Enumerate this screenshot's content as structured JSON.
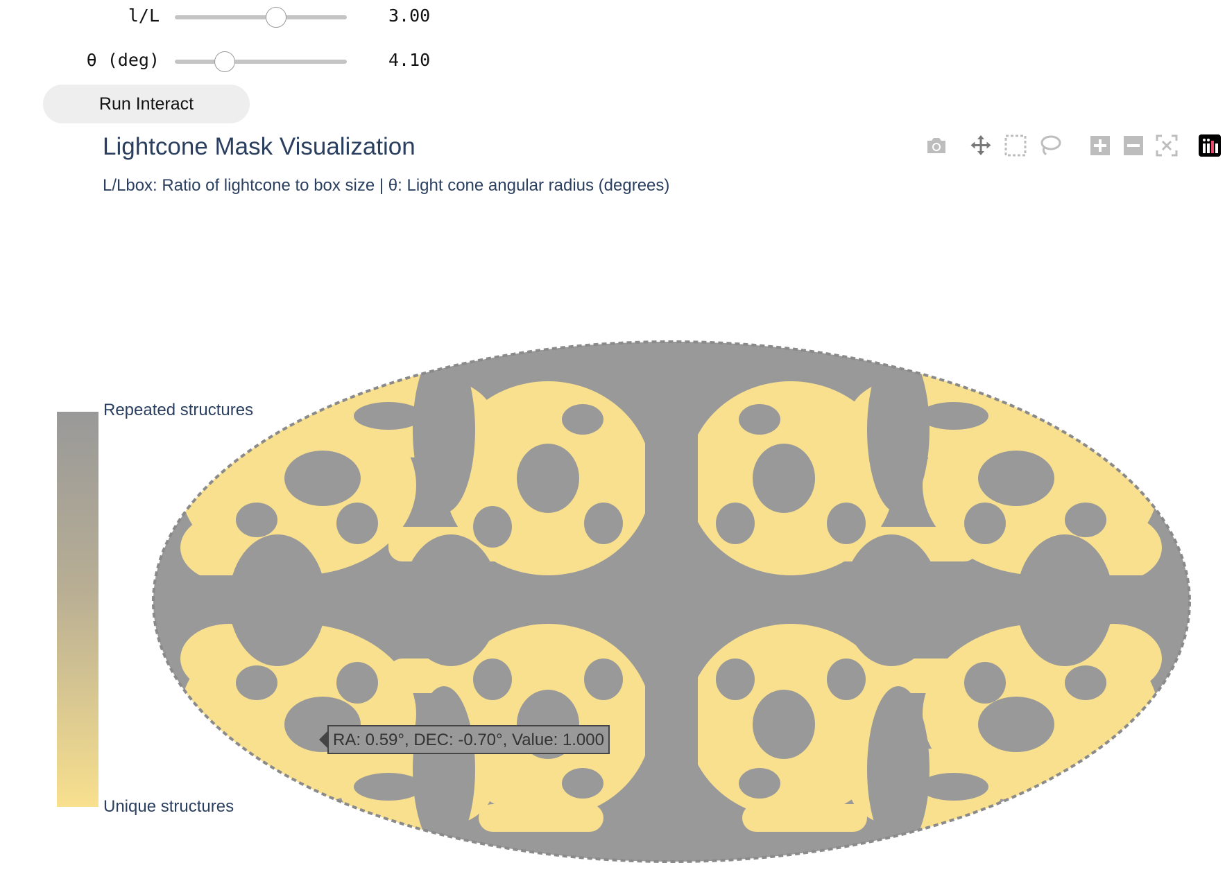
{
  "controls": {
    "sliders": [
      {
        "label": "l/L",
        "value_text": "3.00",
        "fraction": 0.59
      },
      {
        "label": "θ (deg)",
        "value_text": "4.10",
        "fraction": 0.29
      }
    ],
    "run_button_label": "Run Interact"
  },
  "plot": {
    "title": "Lightcone Mask Visualization",
    "subtitle": "L/Lbox: Ratio of lightcone to box size | θ: Light cone angular radius (degrees)",
    "colorbar": {
      "top_label": "Repeated structures",
      "bottom_label": "Unique structures",
      "top_color": "#999999",
      "bottom_color": "#f8e08e"
    },
    "tooltip": "RA: 0.59°, DEC: -0.70°, Value: 1.000",
    "colors": {
      "repeated": "#999999",
      "unique": "#f8e08e",
      "title_text": "#2a3f5f"
    }
  },
  "modebar": {
    "buttons": [
      {
        "name": "camera-icon"
      },
      {
        "name": "pan-icon"
      },
      {
        "name": "box-select-icon"
      },
      {
        "name": "lasso-select-icon"
      },
      {
        "name": "zoom-in-icon"
      },
      {
        "name": "zoom-out-icon"
      },
      {
        "name": "autoscale-icon"
      },
      {
        "name": "plotly-logo-icon"
      }
    ]
  }
}
